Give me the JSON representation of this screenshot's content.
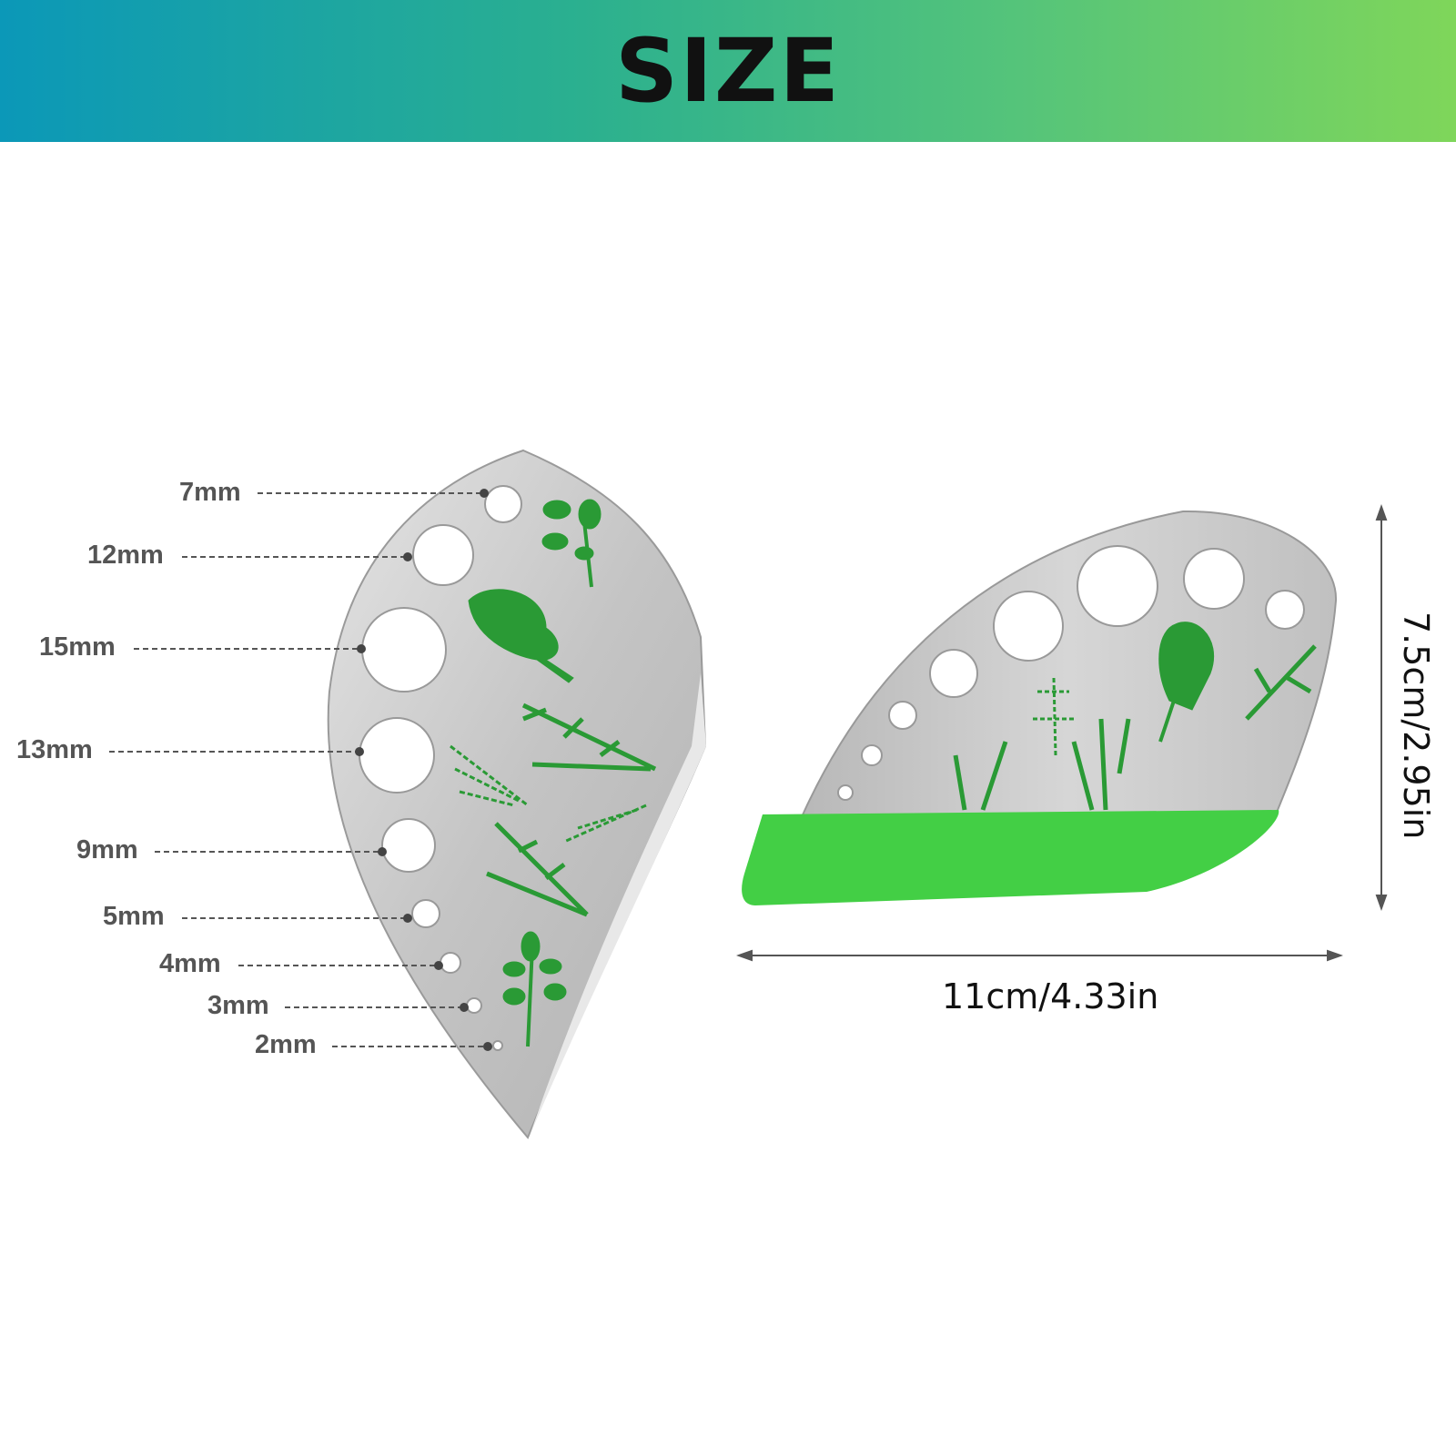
{
  "header": {
    "title": "SIZE"
  },
  "hole_labels": [
    "7mm",
    "12mm",
    "15mm",
    "13mm",
    "9mm",
    "5mm",
    "4mm",
    "3mm",
    "2mm"
  ],
  "dimensions": {
    "width": "11cm/4.33in",
    "height": "7.5cm/2.95in"
  },
  "colors": {
    "header_start": "#0b98b8",
    "header_end": "#7fd65a",
    "herb_green": "#2a9a35",
    "base_green": "#43cf45",
    "steel": "#c9c9c9",
    "label_gray": "#555555"
  }
}
